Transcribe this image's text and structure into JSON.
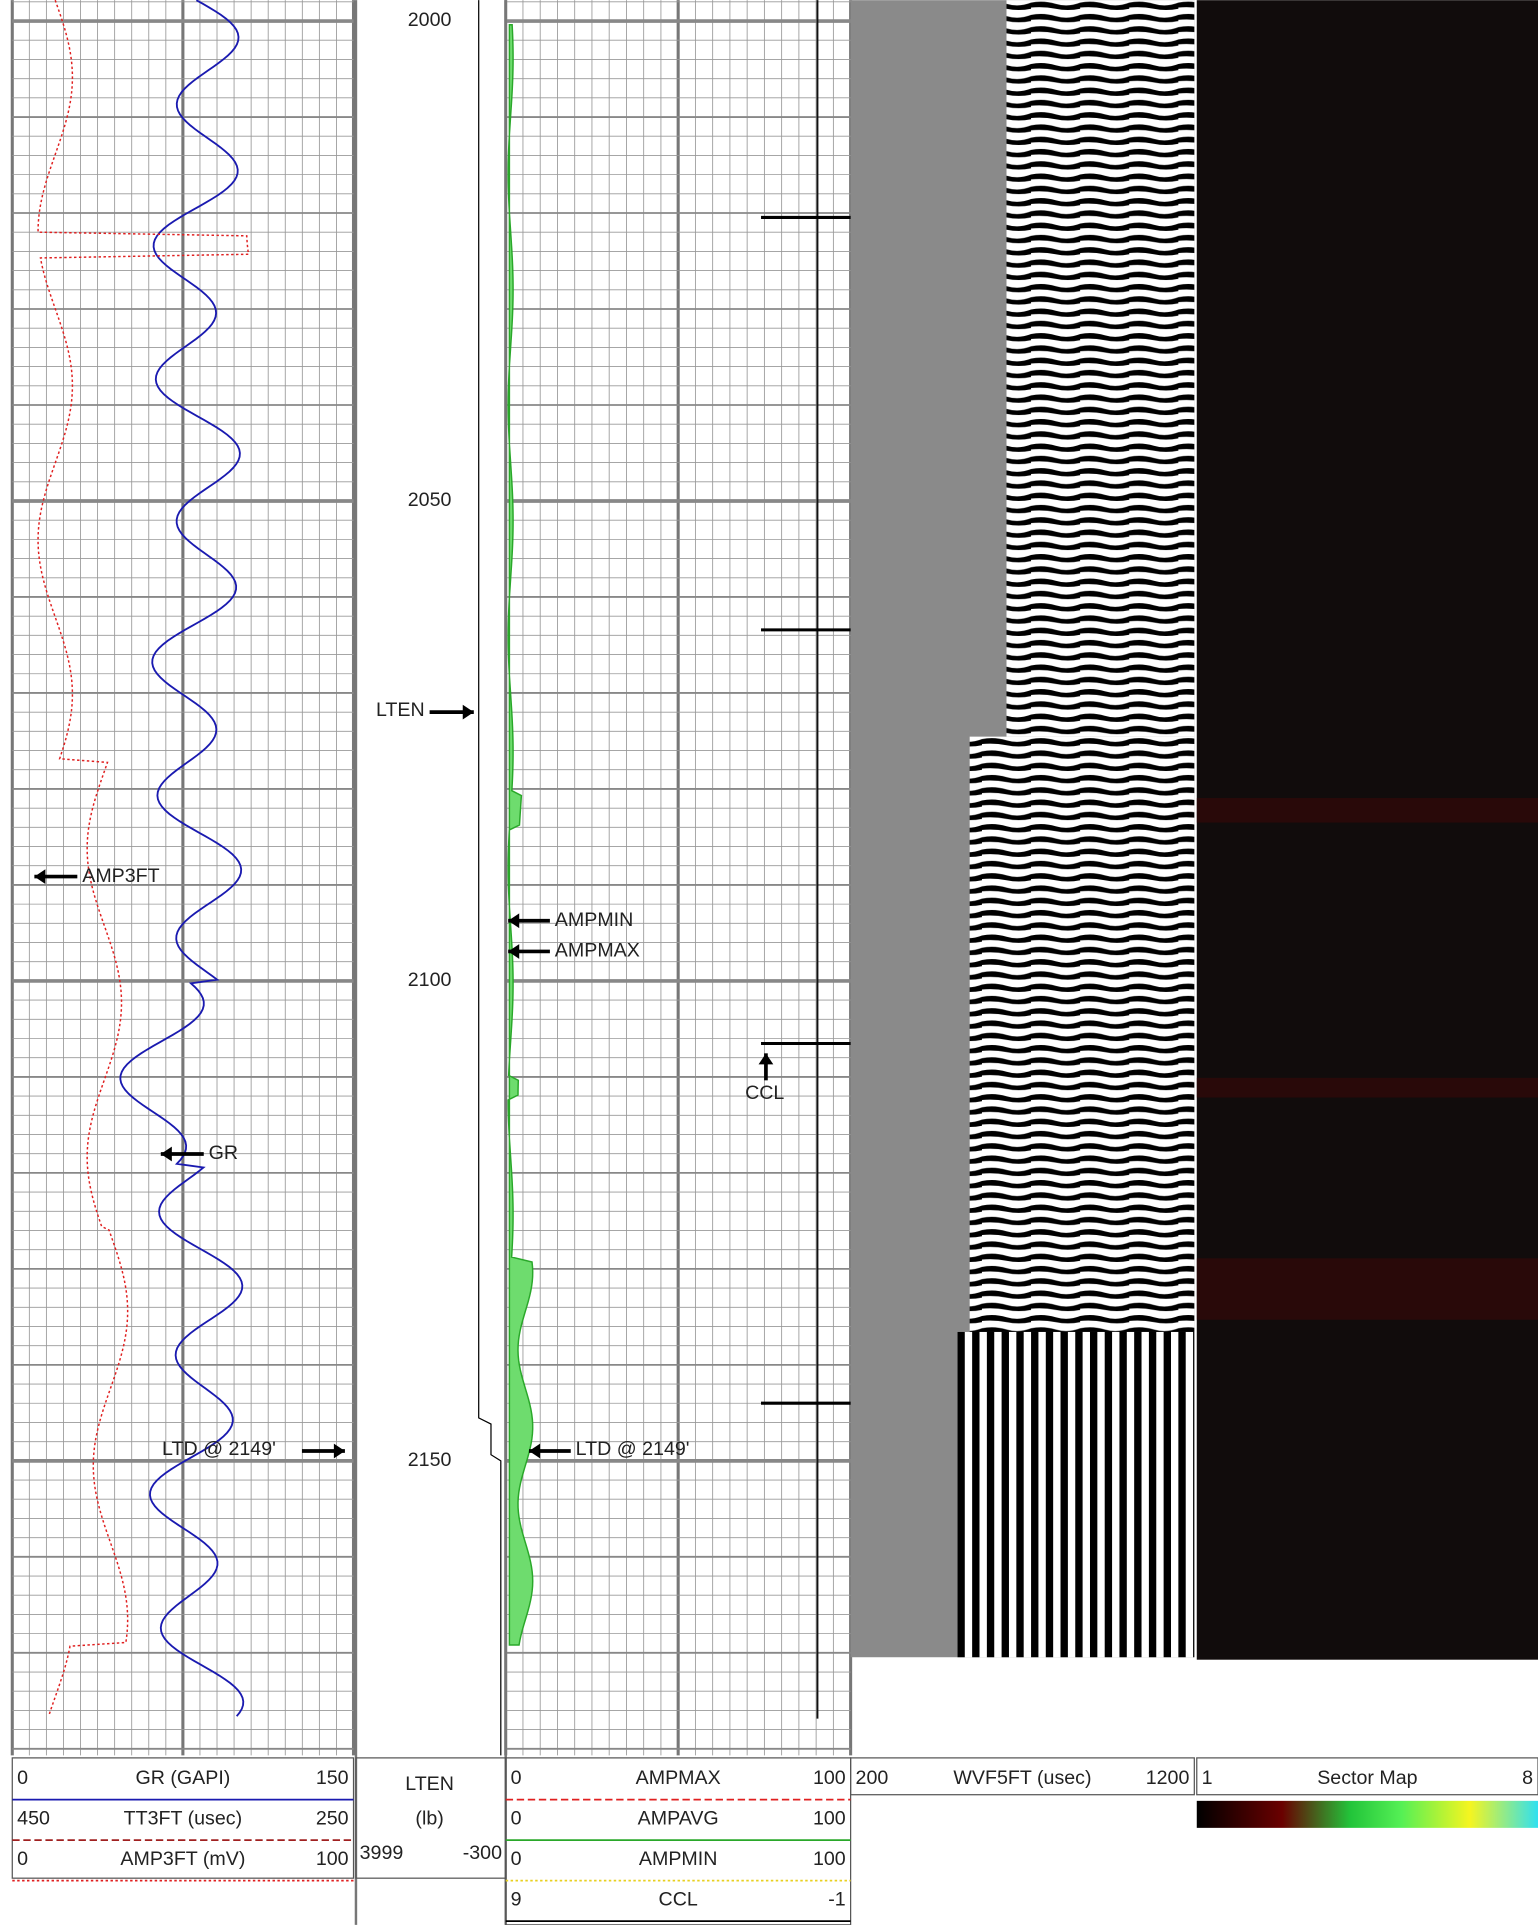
{
  "depth_labels": [
    2000,
    2050,
    2100,
    2150
  ],
  "annotations": {
    "lten": "LTEN",
    "amp3ft": "AMP3FT",
    "ampmin": "AMPMIN",
    "ampmax": "AMPMAX",
    "ccl": "CCL",
    "gr": "GR",
    "ltd_left": "LTD @ 2149'",
    "ltd_right": "LTD @ 2149'"
  },
  "header": {
    "track1": [
      {
        "left": "0",
        "name": "GR (GAPI)",
        "right": "150"
      },
      {
        "left": "450",
        "name": "TT3FT (usec)",
        "right": "250"
      },
      {
        "left": "0",
        "name": "AMP3FT (mV)",
        "right": "100"
      }
    ],
    "depth": {
      "name": "LTEN",
      "unit": "(lb)",
      "left": "3999",
      "right": "-300"
    },
    "track2": [
      {
        "left": "0",
        "name": "AMPMAX",
        "right": "100"
      },
      {
        "left": "0",
        "name": "AMPAVG",
        "right": "100"
      },
      {
        "left": "0",
        "name": "AMPMIN",
        "right": "100"
      },
      {
        "left": "9",
        "name": "CCL",
        "right": "-1"
      }
    ],
    "track3": {
      "left": "200",
      "name": "WVF5FT (usec)",
      "right": "1200"
    },
    "track4": {
      "left": "1",
      "name": "Sector Map",
      "right": "8"
    }
  }
}
